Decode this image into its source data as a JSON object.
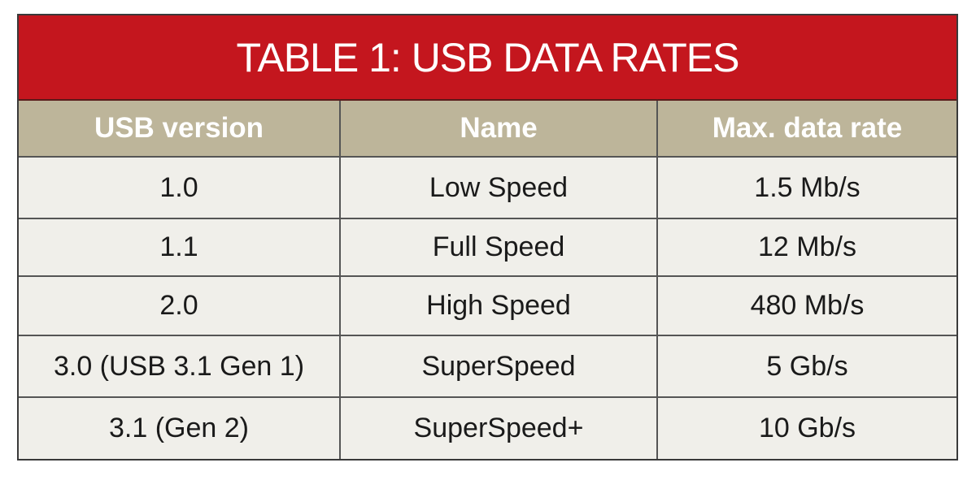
{
  "title": "TABLE 1: USB DATA RATES",
  "colors": {
    "title_bg": "#c4161e",
    "header_bg": "#bdb59a",
    "row_bg": "#f0efea"
  },
  "headers": [
    "USB version",
    "Name",
    "Max. data rate"
  ],
  "rows": [
    [
      "1.0",
      "Low Speed",
      "1.5 Mb/s"
    ],
    [
      "1.1",
      "Full Speed",
      "12 Mb/s"
    ],
    [
      "2.0",
      "High Speed",
      "480 Mb/s"
    ],
    [
      "3.0 (USB 3.1 Gen 1)",
      "SuperSpeed",
      "5 Gb/s"
    ],
    [
      "3.1 (Gen 2)",
      "SuperSpeed+",
      "10 Gb/s"
    ]
  ]
}
